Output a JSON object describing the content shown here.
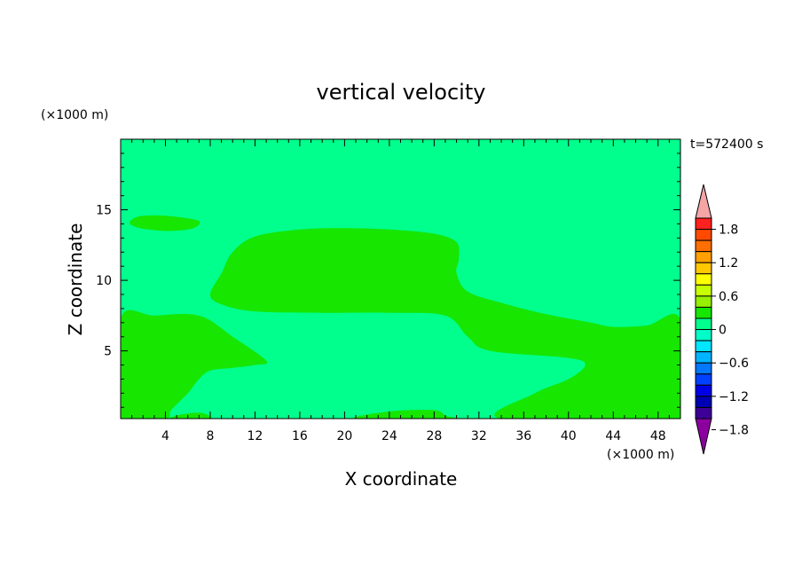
{
  "chart_data": {
    "type": "heatmap",
    "title": "vertical velocity",
    "xlabel": "X coordinate",
    "ylabel": "Z coordinate",
    "x_unit": "(×1000 m)",
    "y_unit": "(×1000 m)",
    "time_label": "t=572400 s",
    "xlim": [
      0,
      50
    ],
    "ylim": [
      0.2,
      20
    ],
    "x_ticks": [
      4,
      8,
      12,
      16,
      20,
      24,
      28,
      32,
      36,
      40,
      44,
      48
    ],
    "y_ticks": [
      5,
      10,
      15
    ],
    "background_color": "#00ff8c",
    "regions": [
      {
        "color": "#16e600",
        "points": [
          [
            10,
            12
          ],
          [
            12,
            13.1
          ],
          [
            16,
            13.6
          ],
          [
            20,
            13.7
          ],
          [
            24,
            13.6
          ],
          [
            28,
            13.3
          ],
          [
            30,
            12.7
          ],
          [
            30.2,
            11.5
          ],
          [
            30,
            10.5
          ],
          [
            31,
            9.2
          ],
          [
            34,
            8.4
          ],
          [
            38,
            7.6
          ],
          [
            42,
            7
          ],
          [
            44,
            6.7
          ],
          [
            47,
            6.8
          ],
          [
            50,
            7.2
          ],
          [
            50,
            0.2
          ],
          [
            34,
            0.2
          ],
          [
            37,
            2
          ],
          [
            40,
            3
          ],
          [
            41.5,
            4
          ],
          [
            40,
            4.5
          ],
          [
            33,
            5
          ],
          [
            31,
            6
          ],
          [
            29,
            7.5
          ],
          [
            24,
            7.7
          ],
          [
            18,
            7.7
          ],
          [
            12,
            7.8
          ],
          [
            9,
            8.3
          ],
          [
            8,
            9
          ],
          [
            9,
            10.5
          ]
        ]
      },
      {
        "color": "#16e600",
        "points": [
          [
            0,
            0.2
          ],
          [
            0,
            7.3
          ],
          [
            3,
            7.5
          ],
          [
            7,
            7.5
          ],
          [
            10,
            6
          ],
          [
            13,
            4.3
          ],
          [
            12,
            4
          ],
          [
            10,
            3.8
          ],
          [
            8,
            3.6
          ],
          [
            7,
            3
          ],
          [
            6,
            2
          ],
          [
            4.5,
            0.8
          ],
          [
            4,
            0.2
          ]
        ]
      },
      {
        "color": "#16e600",
        "points": [
          [
            0.8,
            14.1
          ],
          [
            1.5,
            14.5
          ],
          [
            3,
            14.6
          ],
          [
            5,
            14.5
          ],
          [
            7,
            14.2
          ],
          [
            6.5,
            13.7
          ],
          [
            4.5,
            13.5
          ],
          [
            2.5,
            13.6
          ],
          [
            1.3,
            13.8
          ]
        ]
      },
      {
        "color": "#16e600",
        "points": [
          [
            21,
            0.2
          ],
          [
            24,
            0.7
          ],
          [
            28,
            0.8
          ],
          [
            29,
            0.4
          ],
          [
            29.5,
            0.2
          ]
        ]
      },
      {
        "color": "#16e600",
        "points": [
          [
            4.5,
            0.2
          ],
          [
            5.5,
            0.5
          ],
          [
            7.2,
            0.6
          ],
          [
            8,
            0.2
          ]
        ]
      }
    ],
    "colorbar": {
      "tick_labels": [
        "1.8",
        "1.2",
        "0.6",
        "0",
        "−0.6",
        "−1.2",
        "−1.8"
      ],
      "levels_top_to_bottom": [
        "#ff2020",
        "#ff4a00",
        "#ff6e00",
        "#ffa000",
        "#ffc800",
        "#ffff00",
        "#c8ff00",
        "#96f000",
        "#16e600",
        "#00ff8c",
        "#00ffc8",
        "#00e6ff",
        "#00b4ff",
        "#0078ff",
        "#0040ff",
        "#0000e6",
        "#0000b4",
        "#3c0096"
      ],
      "upper_extend_color": "#f4a6a6",
      "lower_extend_color": "#8c00a0"
    }
  }
}
